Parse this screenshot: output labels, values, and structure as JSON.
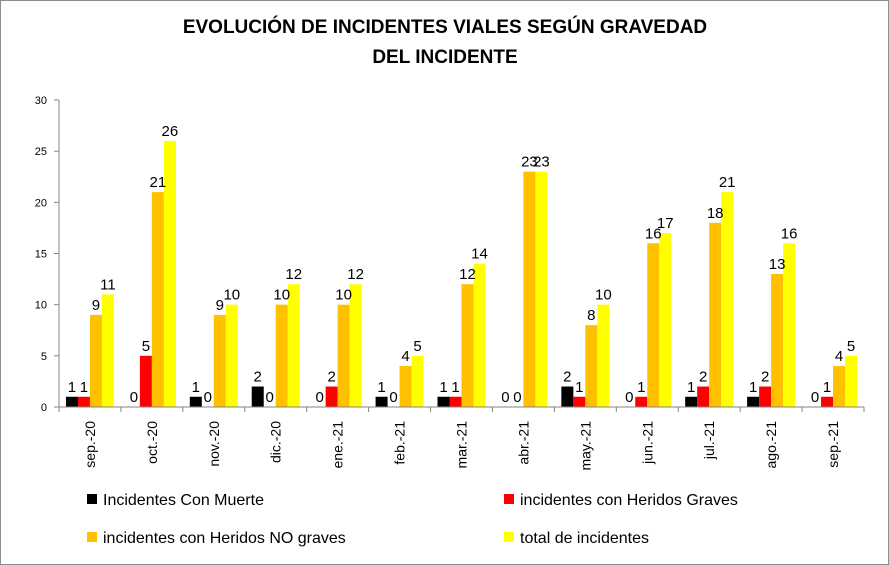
{
  "chart_data": {
    "type": "bar",
    "title_lines": [
      "EVOLUCIÓN DE INCIDENTES VIALES SEGÚN GRAVEDAD",
      "DEL INCIDENTE"
    ],
    "xlabel": "",
    "ylabel": "",
    "ylim": [
      0,
      30
    ],
    "yticks": [
      0,
      5,
      10,
      15,
      20,
      25,
      30
    ],
    "grid": false,
    "legend_position": "bottom",
    "categories": [
      "sep.-20",
      "oct.-20",
      "nov.-20",
      "dic.-20",
      "ene.-21",
      "feb.-21",
      "mar.-21",
      "abr.-21",
      "may.-21",
      "jun.-21",
      "jul.-21",
      "ago.-21",
      "sep.-21"
    ],
    "series": [
      {
        "name": "Incidentes Con Muerte",
        "color": "#000000",
        "values": [
          1,
          0,
          1,
          2,
          0,
          1,
          1,
          0,
          2,
          0,
          1,
          1,
          0
        ]
      },
      {
        "name": "incidentes con Heridos Graves",
        "color": "#ff0000",
        "values": [
          1,
          5,
          0,
          0,
          2,
          0,
          1,
          0,
          1,
          1,
          2,
          2,
          1
        ]
      },
      {
        "name": "incidentes con Heridos NO graves",
        "color": "#ffc000",
        "values": [
          9,
          21,
          9,
          10,
          10,
          4,
          12,
          23,
          8,
          16,
          18,
          13,
          4
        ]
      },
      {
        "name": "total de incidentes",
        "color": "#ffff00",
        "values": [
          11,
          26,
          10,
          12,
          12,
          5,
          14,
          23,
          10,
          17,
          21,
          16,
          5
        ]
      }
    ]
  }
}
